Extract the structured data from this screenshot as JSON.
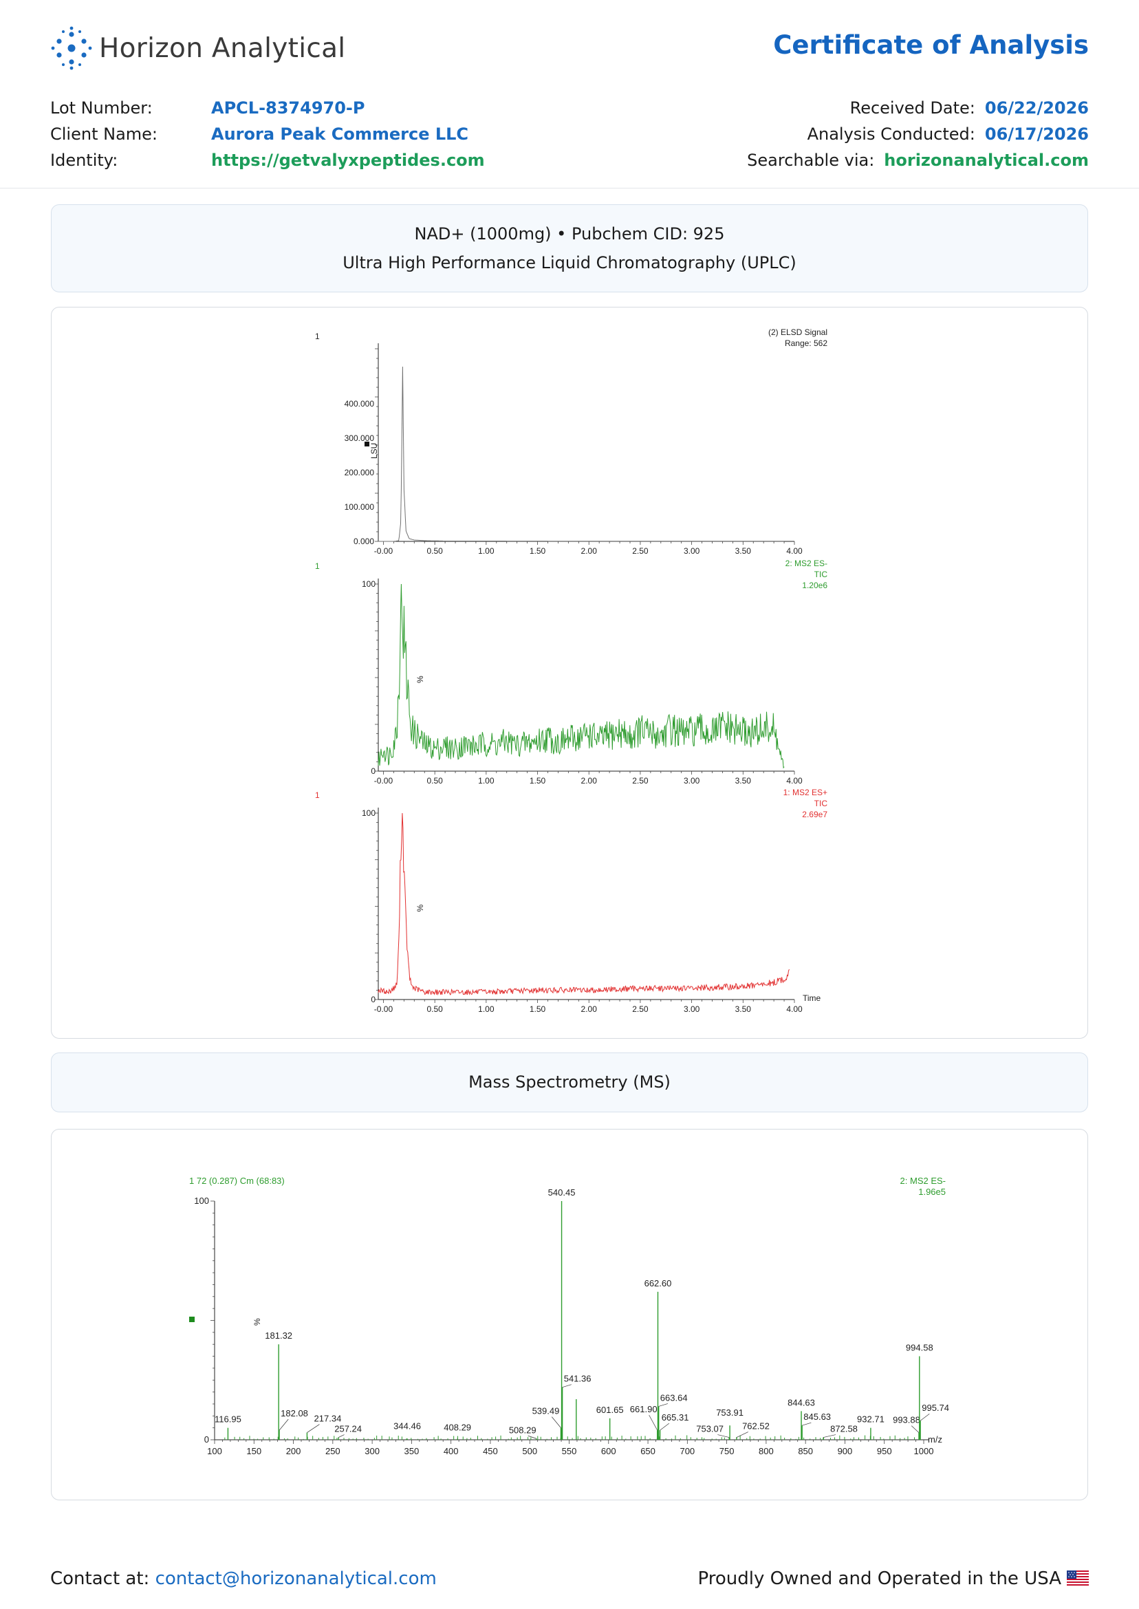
{
  "header": {
    "company": "Horizon Analytical",
    "document_title": "Certificate of Analysis"
  },
  "meta_left": [
    {
      "key": "Lot Number:",
      "value": "APCL-8374970-P",
      "color": "#1a6bc1"
    },
    {
      "key": "Client Name:",
      "value": "Aurora Peak Commerce LLC",
      "color": "#1a6bc1"
    },
    {
      "key": "Identity:",
      "value": "https://getvalyxpeptides.com",
      "color": "#1d9d5a"
    }
  ],
  "meta_right": [
    {
      "key": "Received Date:",
      "value": "06/22/2026",
      "color": "#1a6bc1"
    },
    {
      "key": "Analysis Conducted:",
      "value": "06/17/2026",
      "color": "#1a6bc1"
    },
    {
      "key": "Searchable via:",
      "value": "horizonanalytical.com",
      "color": "#1d9d5a"
    }
  ],
  "uplc_banner": {
    "line1": "NAD+ (1000mg) • Pubchem CID: 925",
    "line2": "Ultra High Performance Liquid Chromatography (UPLC)"
  },
  "ms_banner": {
    "line1": "Mass Spectrometry (MS)"
  },
  "footer": {
    "contact_label": "Contact at:",
    "contact_email": "contact@horizonanalytical.com",
    "tagline": "Proudly Owned and Operated in the USA"
  },
  "chart_data": [
    {
      "type": "line",
      "panel_marker": "1",
      "legend": [
        "(2) ELSD Signal",
        "Range: 562"
      ],
      "ylabel": "LSU",
      "yticks": [
        "0.000",
        "100.000",
        "200.000",
        "300.000",
        "400.000"
      ],
      "ylim": [
        0,
        560
      ],
      "xticks": [
        "-0.00",
        "0.50",
        "1.00",
        "1.50",
        "2.00",
        "2.50",
        "3.00",
        "3.50",
        "4.00"
      ],
      "xlim": [
        -0.05,
        4.0
      ],
      "color": "#707070",
      "x": [
        -0.05,
        0.1,
        0.15,
        0.17,
        0.18,
        0.185,
        0.19,
        0.2,
        0.22,
        0.25,
        0.3,
        0.4,
        0.6,
        1.0,
        2.0,
        3.0,
        3.9
      ],
      "y": [
        0,
        0,
        2,
        60,
        300,
        560,
        430,
        150,
        30,
        8,
        4,
        2,
        1,
        1,
        0.5,
        0.5,
        0.5
      ]
    },
    {
      "type": "line",
      "panel_marker": "1",
      "legend": [
        "2: MS2 ES-",
        "TIC",
        "1.20e6"
      ],
      "ylabel": "%",
      "yticks": [
        "0",
        "100"
      ],
      "ylim": [
        0,
        100
      ],
      "xticks": [
        "-0.00",
        "0.50",
        "1.00",
        "1.50",
        "2.00",
        "2.50",
        "3.00",
        "3.50",
        "4.00"
      ],
      "xlim": [
        -0.05,
        4.0
      ],
      "color": "#2e9c2e",
      "x": [
        -0.05,
        0.0,
        0.05,
        0.1,
        0.13,
        0.15,
        0.17,
        0.18,
        0.19,
        0.2,
        0.22,
        0.24,
        0.26,
        0.28,
        0.3,
        0.35,
        0.4,
        0.5,
        0.6,
        0.7,
        0.8,
        0.9,
        1.0,
        1.1,
        1.2,
        1.3,
        1.4,
        1.5,
        1.6,
        1.7,
        1.8,
        1.9,
        2.0,
        2.1,
        2.2,
        2.3,
        2.4,
        2.5,
        2.6,
        2.7,
        2.8,
        2.9,
        3.0,
        3.1,
        3.2,
        3.3,
        3.4,
        3.5,
        3.6,
        3.7,
        3.8,
        3.85,
        3.9
      ],
      "y": [
        5,
        12,
        8,
        15,
        22,
        45,
        100,
        90,
        85,
        70,
        55,
        40,
        30,
        22,
        20,
        18,
        14,
        12,
        13,
        12,
        14,
        13,
        15,
        14,
        16,
        14,
        15,
        16,
        18,
        15,
        17,
        18,
        20,
        17,
        19,
        21,
        18,
        22,
        20,
        19,
        23,
        20,
        21,
        22,
        20,
        24,
        22,
        21,
        20,
        23,
        22,
        12,
        0
      ]
    },
    {
      "type": "line",
      "panel_marker": "1",
      "legend": [
        "1: MS2 ES+",
        "TIC",
        "2.69e7"
      ],
      "ylabel": "%",
      "yticks": [
        "0",
        "100"
      ],
      "ylim": [
        0,
        100
      ],
      "xticks": [
        "-0.00",
        "0.50",
        "1.00",
        "1.50",
        "2.00",
        "2.50",
        "3.00",
        "3.50",
        "4.00"
      ],
      "xlim": [
        -0.05,
        4.0
      ],
      "xlabel": "Time",
      "color": "#e23030",
      "x": [
        -0.05,
        0.05,
        0.1,
        0.13,
        0.15,
        0.17,
        0.18,
        0.19,
        0.2,
        0.22,
        0.24,
        0.26,
        0.28,
        0.3,
        0.35,
        0.4,
        0.6,
        1.0,
        1.5,
        2.0,
        2.5,
        3.0,
        3.5,
        3.7,
        3.8,
        3.9,
        3.95
      ],
      "y": [
        5,
        4,
        6,
        8,
        30,
        85,
        100,
        92,
        70,
        40,
        20,
        10,
        7,
        6,
        5,
        4,
        4,
        4,
        5,
        5,
        6,
        6,
        7,
        8,
        9,
        11,
        14
      ]
    },
    {
      "type": "bar",
      "title": "1 72 (0.287) Cm (68:83)",
      "legend": [
        "2: MS2 ES-",
        "1.96e5"
      ],
      "ylabel": "%",
      "yticks": [
        "0",
        "100"
      ],
      "ylim": [
        0,
        100
      ],
      "xlabel": "m/z",
      "xticks": [
        "100",
        "150",
        "200",
        "250",
        "300",
        "350",
        "400",
        "450",
        "500",
        "550",
        "600",
        "650",
        "700",
        "750",
        "800",
        "850",
        "900",
        "950",
        "1000"
      ],
      "xlim": [
        100,
        1000
      ],
      "color": "#2e9c2e",
      "peaks": [
        {
          "mz": 116.95,
          "intensity": 5,
          "label": "116.95"
        },
        {
          "mz": 181.32,
          "intensity": 40,
          "label": "181.32"
        },
        {
          "mz": 182.08,
          "intensity": 4,
          "label": "182.08"
        },
        {
          "mz": 217.34,
          "intensity": 3,
          "label": "217.34"
        },
        {
          "mz": 257.24,
          "intensity": 1,
          "label": "257.24"
        },
        {
          "mz": 344.46,
          "intensity": 0.5,
          "label": "344.46"
        },
        {
          "mz": 408.29,
          "intensity": 0.5,
          "label": "408.29"
        },
        {
          "mz": 508.29,
          "intensity": 0.5,
          "label": "508.29"
        },
        {
          "mz": 539.49,
          "intensity": 5,
          "label": "539.49"
        },
        {
          "mz": 540.45,
          "intensity": 100,
          "label": "540.45"
        },
        {
          "mz": 541.36,
          "intensity": 22,
          "label": "541.36"
        },
        {
          "mz": 559.0,
          "intensity": 17,
          "label": ""
        },
        {
          "mz": 601.65,
          "intensity": 9,
          "label": "601.65"
        },
        {
          "mz": 661.9,
          "intensity": 4,
          "label": "661.90"
        },
        {
          "mz": 662.6,
          "intensity": 62,
          "label": "662.60"
        },
        {
          "mz": 663.64,
          "intensity": 14,
          "label": "663.64"
        },
        {
          "mz": 665.31,
          "intensity": 4,
          "label": "665.31"
        },
        {
          "mz": 753.07,
          "intensity": 1,
          "label": "753.07"
        },
        {
          "mz": 753.91,
          "intensity": 6,
          "label": "753.91"
        },
        {
          "mz": 762.52,
          "intensity": 1,
          "label": "762.52"
        },
        {
          "mz": 844.63,
          "intensity": 12,
          "label": "844.63"
        },
        {
          "mz": 845.63,
          "intensity": 6,
          "label": "845.63"
        },
        {
          "mz": 872.58,
          "intensity": 1,
          "label": "872.58"
        },
        {
          "mz": 932.71,
          "intensity": 5,
          "label": "932.71"
        },
        {
          "mz": 993.88,
          "intensity": 3,
          "label": "993.88"
        },
        {
          "mz": 994.58,
          "intensity": 35,
          "label": "994.58"
        },
        {
          "mz": 995.74,
          "intensity": 8,
          "label": "995.74"
        }
      ]
    }
  ]
}
